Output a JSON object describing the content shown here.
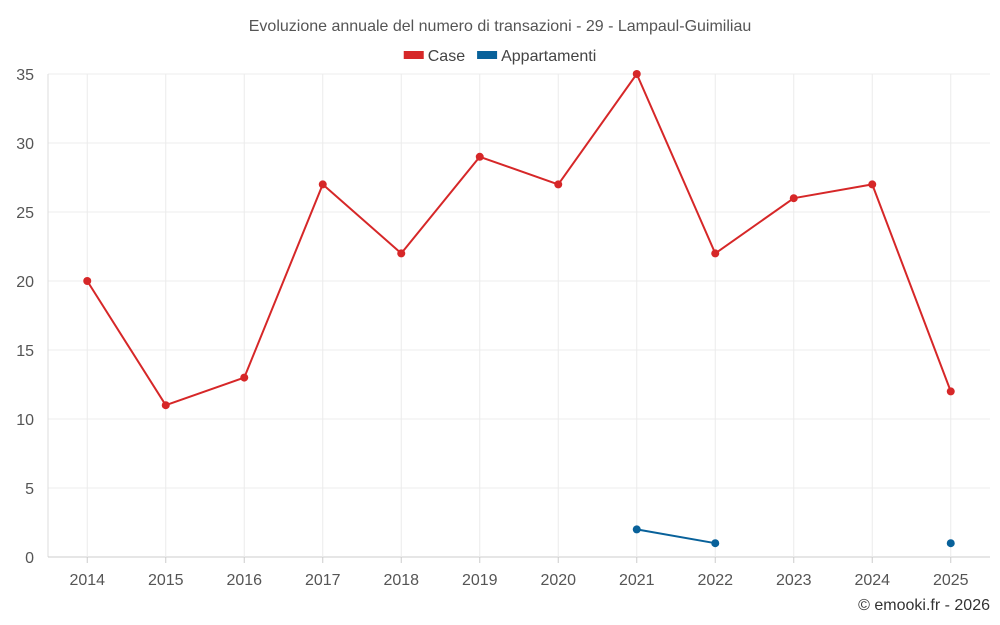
{
  "chart_data": {
    "type": "line",
    "title": "Evoluzione annuale del numero di transazioni - 29 - Lampaul-Guimiliau",
    "xlabel": "",
    "ylabel": "",
    "categories": [
      "2014",
      "2015",
      "2016",
      "2017",
      "2018",
      "2019",
      "2020",
      "2021",
      "2022",
      "2023",
      "2024",
      "2025"
    ],
    "ylim": [
      0,
      35
    ],
    "yticks": [
      0,
      5,
      10,
      15,
      20,
      25,
      30,
      35
    ],
    "grid": true,
    "legend_position": "top-center",
    "series": [
      {
        "name": "Case",
        "color": "#d62728",
        "values": [
          20,
          11,
          13,
          27,
          22,
          29,
          27,
          35,
          22,
          26,
          27,
          12
        ]
      },
      {
        "name": "Appartamenti",
        "color": "#08619a",
        "values": [
          null,
          null,
          null,
          null,
          null,
          null,
          null,
          2,
          1,
          null,
          null,
          1
        ]
      }
    ]
  },
  "credit": "© emooki.fr - 2026"
}
